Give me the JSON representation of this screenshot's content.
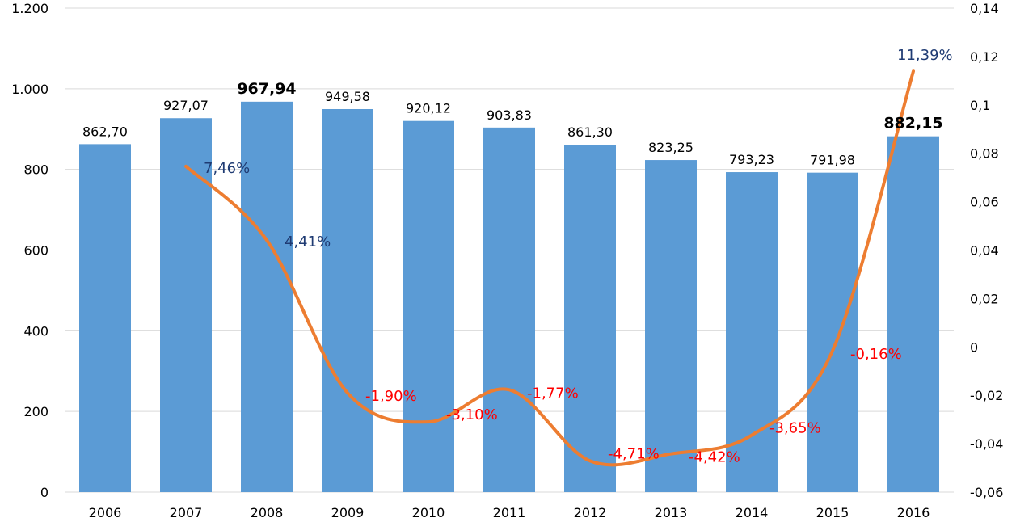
{
  "chart_data": {
    "type": "bar",
    "categories": [
      "2006",
      "2007",
      "2008",
      "2009",
      "2010",
      "2011",
      "2012",
      "2013",
      "2014",
      "2015",
      "2016"
    ],
    "series": [
      {
        "type": "bar",
        "axis": "left",
        "color": "#5B9BD5",
        "values": [
          862.7,
          927.07,
          967.94,
          949.58,
          920.12,
          903.83,
          861.3,
          823.25,
          793.23,
          791.98,
          882.15
        ],
        "labels": [
          "862,70",
          "927,07",
          "967,94",
          "949,58",
          "920,12",
          "903,83",
          "861,30",
          "823,25",
          "793,23",
          "791,98",
          "882,15"
        ],
        "bold_labels": [
          "2008",
          "2016"
        ]
      },
      {
        "type": "line",
        "axis": "right",
        "color": "#ED7D31",
        "values": [
          null,
          0.0746,
          0.0441,
          -0.019,
          -0.031,
          -0.0177,
          -0.0471,
          -0.0442,
          -0.0365,
          -0.0016,
          0.1139
        ],
        "labels": [
          "",
          "7,46%",
          "4,41%",
          "-1,90%",
          "-3,10%",
          "-1,77%",
          "-4,71%",
          "-4,42%",
          "-3,65%",
          "-0,16%",
          "11,39%"
        ],
        "positive_label_color": "#1F3B73",
        "negative_label_color": "#FF0000"
      }
    ],
    "y_left": {
      "min": 0,
      "max": 1200,
      "ticks": [
        0,
        200,
        400,
        600,
        800,
        1000,
        1200
      ],
      "tick_labels": [
        "0",
        "200",
        "400",
        "600",
        "800",
        "1.000",
        "1.200"
      ]
    },
    "y_right": {
      "min": -0.06,
      "max": 0.14,
      "ticks": [
        -0.06,
        -0.04,
        -0.02,
        0,
        0.02,
        0.04,
        0.06,
        0.08,
        0.1,
        0.12,
        0.14
      ],
      "tick_labels": [
        "-0,06",
        "-0,04",
        "-0,02",
        "0",
        "0,02",
        "0,04",
        "0,06",
        "0,08",
        "0,1",
        "0,12",
        "0,14"
      ]
    },
    "grid": true,
    "gridline_color": "#D9D9D9",
    "legend": "none"
  }
}
